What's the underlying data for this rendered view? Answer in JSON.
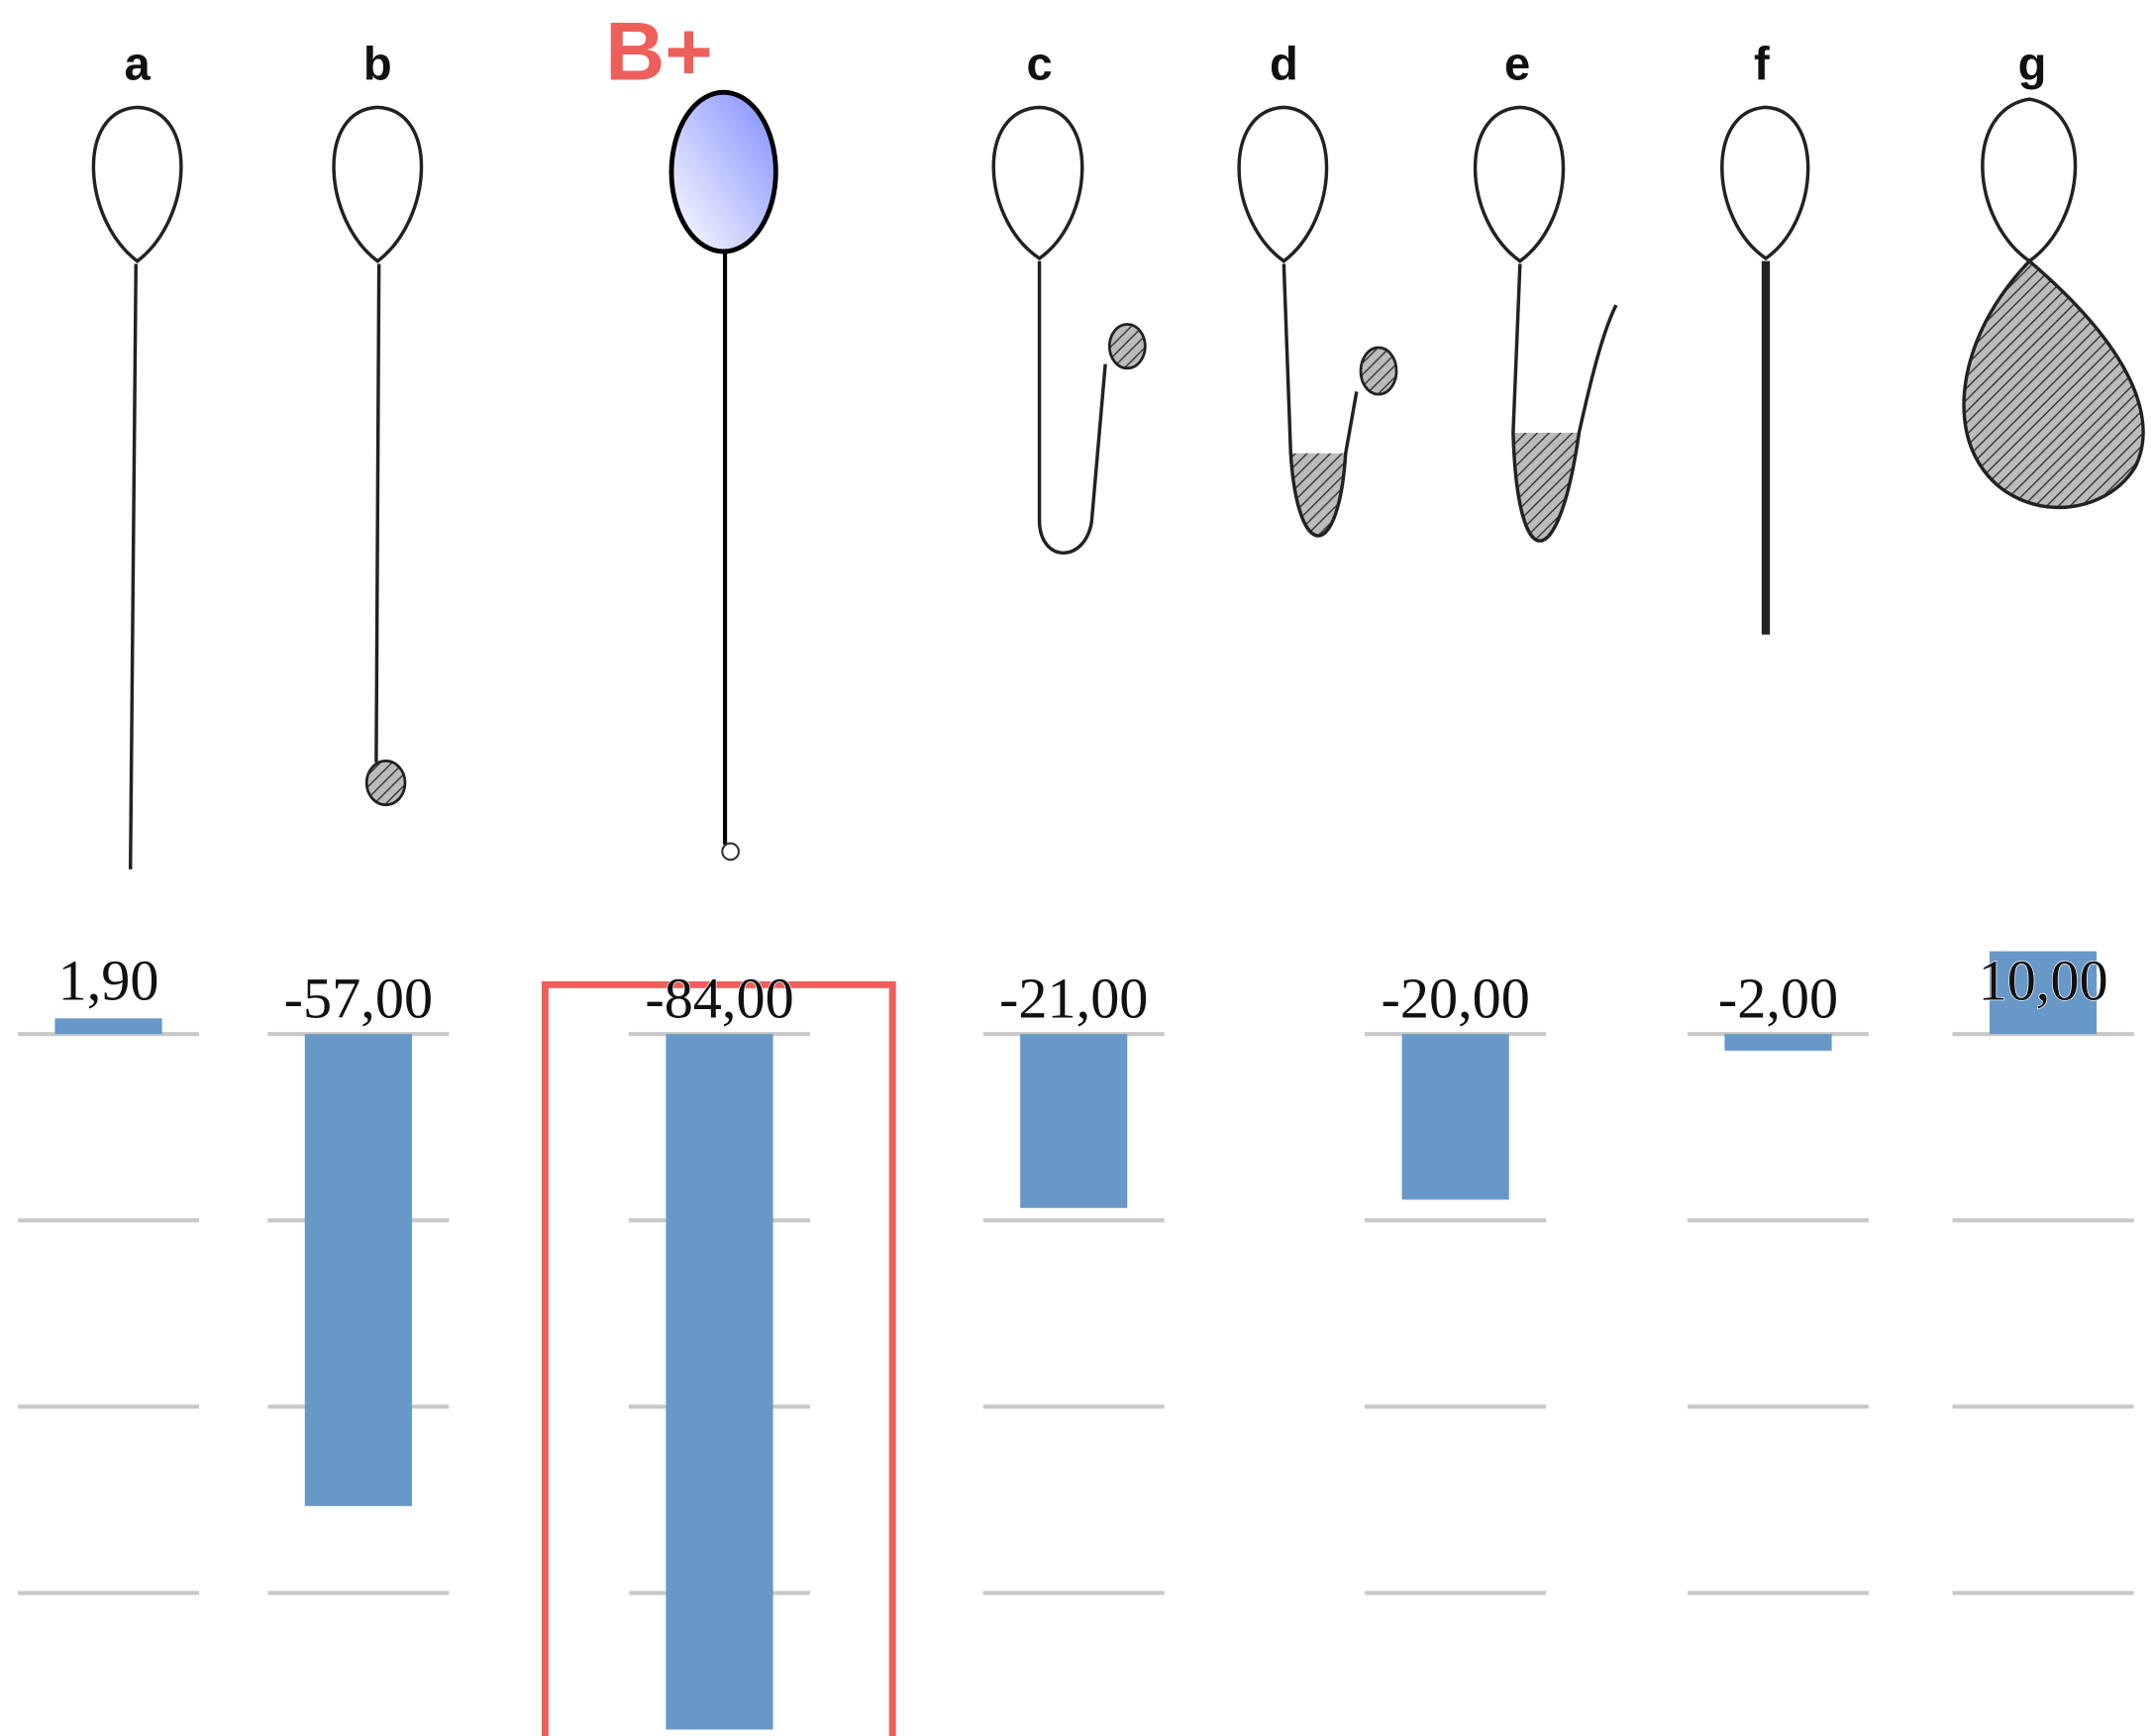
{
  "chart_data": {
    "type": "bar",
    "categories": [
      "a",
      "b",
      "B+",
      "c",
      "d",
      "e",
      "f",
      "g"
    ],
    "values": [
      1.9,
      -57,
      -84,
      -21,
      null,
      -20,
      -2,
      10
    ],
    "value_labels": [
      "1,90",
      "-57,00",
      "-84,00",
      "-21,00",
      null,
      "-20,00",
      "-2,00",
      "10,00"
    ],
    "color": "#6798c8",
    "ylim": [
      -84.5,
      12
    ],
    "yticks": [
      0,
      -22.5,
      -45,
      -67.5
    ],
    "grid": true
  }
}
